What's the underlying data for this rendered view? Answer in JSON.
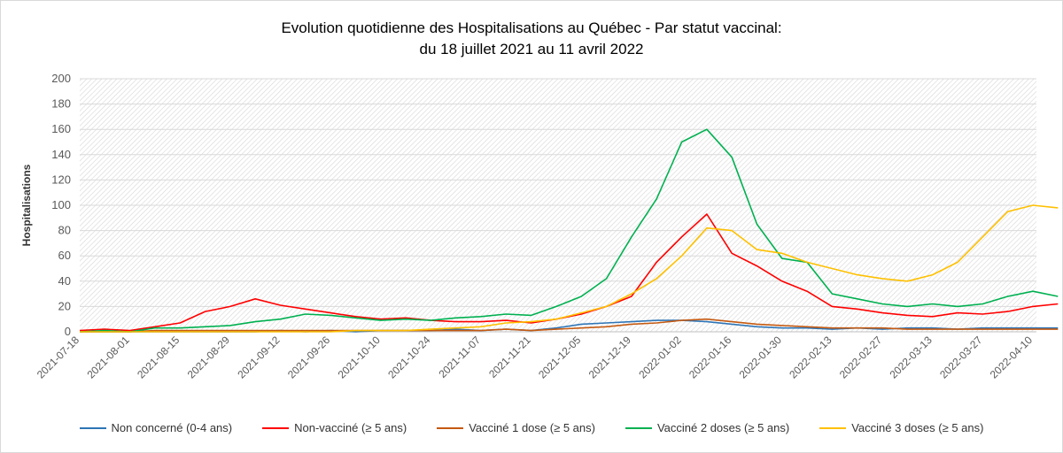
{
  "chart_data": {
    "type": "line",
    "title_line1": "Evolution quotidienne des Hospitalisations au Québec - Par statut vaccinal:",
    "title_line2": "du 18 juillet 2021 au 11 avril 2022",
    "ylabel": "Hospitalisations",
    "ylim": [
      0,
      200
    ],
    "yticks": [
      "0",
      "20",
      "40",
      "60",
      "80",
      "100",
      "120",
      "140",
      "160",
      "180",
      "200"
    ],
    "xticks": [
      "2021-07-18",
      "2021-08-01",
      "2021-08-15",
      "2021-08-29",
      "2021-09-12",
      "2021-09-26",
      "2021-10-10",
      "2021-10-24",
      "2021-11-07",
      "2021-11-21",
      "2021-12-05",
      "2021-12-19",
      "2022-01-02",
      "2022-01-16",
      "2022-01-30",
      "2022-02-13",
      "2022-02-27",
      "2022-03-13",
      "2022-03-27",
      "2022-04-10"
    ],
    "x_step_days": 7,
    "series": [
      {
        "name": "Non concerné (0-4 ans)",
        "color": "#2e75b6",
        "values": [
          0,
          0,
          0,
          0,
          0,
          0,
          0,
          0,
          1,
          0,
          1,
          0,
          1,
          1,
          1,
          2,
          1,
          2,
          1,
          3,
          6,
          7,
          8,
          9,
          9,
          8,
          6,
          4,
          3,
          3,
          2,
          3,
          2,
          3,
          3,
          2,
          3,
          3,
          3,
          3
        ]
      },
      {
        "name": "Non-vacciné (≥ 5 ans)",
        "color": "#ff0000",
        "values": [
          1,
          2,
          1,
          4,
          7,
          16,
          20,
          26,
          21,
          18,
          15,
          12,
          10,
          11,
          9,
          8,
          8,
          9,
          7,
          10,
          14,
          20,
          28,
          55,
          75,
          93,
          62,
          52,
          40,
          32,
          20,
          18,
          15,
          13,
          12,
          15,
          14,
          16,
          20,
          22
        ]
      },
      {
        "name": "Vacciné 1 dose (≥ 5 ans)",
        "color": "#c55a11",
        "values": [
          0,
          0,
          0,
          1,
          1,
          1,
          1,
          1,
          1,
          1,
          1,
          1,
          1,
          1,
          1,
          1,
          1,
          2,
          1,
          2,
          3,
          4,
          6,
          7,
          9,
          10,
          8,
          6,
          5,
          4,
          3,
          3,
          3,
          2,
          2,
          2,
          2,
          2,
          2,
          2
        ]
      },
      {
        "name": "Vacciné 2 doses (≥ 5 ans)",
        "color": "#00b050",
        "values": [
          0,
          1,
          0,
          3,
          3,
          4,
          5,
          8,
          10,
          14,
          13,
          11,
          9,
          10,
          9,
          11,
          12,
          14,
          13,
          20,
          28,
          42,
          75,
          105,
          150,
          160,
          138,
          85,
          58,
          55,
          30,
          26,
          22,
          20,
          22,
          20,
          22,
          28,
          32,
          28
        ]
      },
      {
        "name": "Vacciné 3 doses (≥ 5 ans)",
        "color": "#ffc000",
        "values": [
          0,
          0,
          0,
          0,
          0,
          0,
          0,
          0,
          0,
          0,
          0,
          1,
          1,
          1,
          2,
          3,
          4,
          7,
          8,
          10,
          15,
          20,
          30,
          42,
          60,
          82,
          80,
          65,
          62,
          55,
          50,
          45,
          42,
          40,
          45,
          55,
          75,
          95,
          100,
          98
        ]
      }
    ]
  }
}
